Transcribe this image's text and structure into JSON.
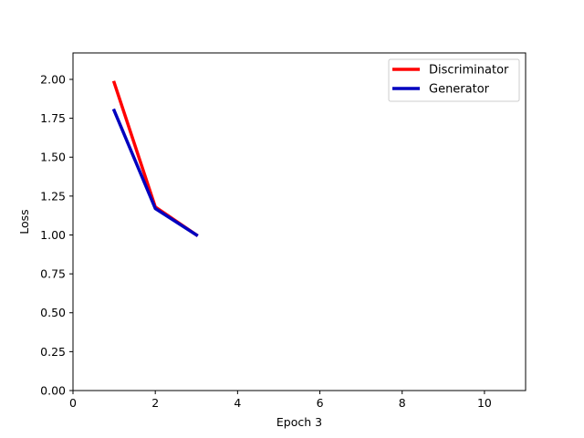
{
  "chart_data": {
    "type": "line",
    "title": "",
    "xlabel": "Epoch 3",
    "ylabel": "Loss",
    "xlim": [
      0,
      11
    ],
    "ylim": [
      0,
      2.17
    ],
    "xticks": [
      0,
      2,
      4,
      6,
      8,
      10
    ],
    "xtick_labels": [
      "0",
      "2",
      "4",
      "6",
      "8",
      "10"
    ],
    "yticks": [
      0,
      0.25,
      0.5,
      0.75,
      1.0,
      1.25,
      1.5,
      1.75,
      2.0
    ],
    "ytick_labels": [
      "0.00",
      "0.25",
      "0.50",
      "0.75",
      "1.00",
      "1.25",
      "1.50",
      "1.75",
      "2.00"
    ],
    "grid": false,
    "legend_position": "top-right",
    "series": [
      {
        "name": "Discriminator",
        "color": "#ff0000",
        "x": [
          1,
          2,
          3
        ],
        "y": [
          1.98,
          1.18,
          1.0
        ]
      },
      {
        "name": "Generator",
        "color": "#0000bf",
        "x": [
          1,
          2,
          3
        ],
        "y": [
          1.8,
          1.17,
          1.0
        ]
      }
    ]
  }
}
